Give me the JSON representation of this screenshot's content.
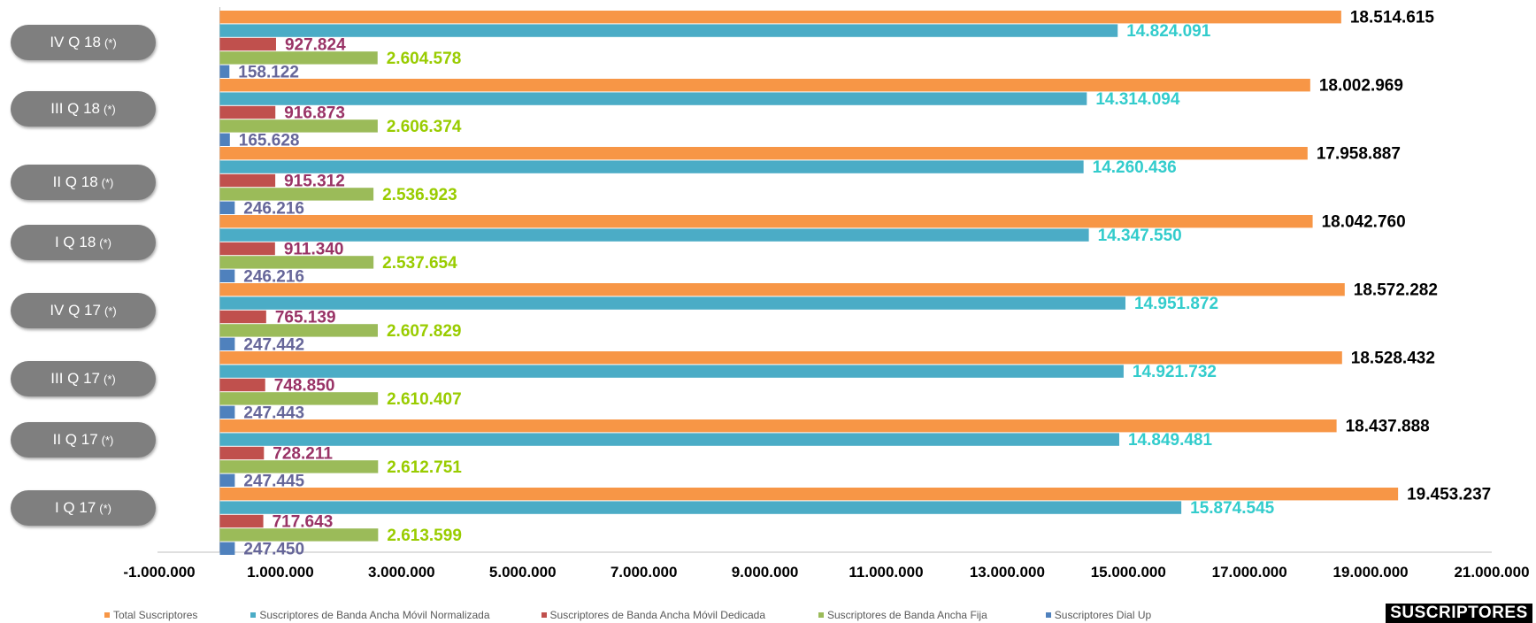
{
  "brand_label": "SUSCRIPTORES",
  "chart_data": {
    "type": "bar",
    "orientation": "horizontal",
    "categories": [
      {
        "label": "IV Q 18",
        "note": "(*)"
      },
      {
        "label": "III Q 18",
        "note": "(*)"
      },
      {
        "label": "II Q 18",
        "note": "(*)"
      },
      {
        "label": "I Q 18",
        "note": "(*)"
      },
      {
        "label": "IV Q 17",
        "note": "(*)"
      },
      {
        "label": "III Q 17",
        "note": "(*)"
      },
      {
        "label": "II Q 17",
        "note": "(*)"
      },
      {
        "label": "I Q 17",
        "note": "(*)"
      }
    ],
    "series": [
      {
        "name": "Total Suscriptores",
        "color": "#F79646",
        "label_color": "#000000",
        "values": [
          18514615,
          18002969,
          17958887,
          18042760,
          18572282,
          18528432,
          18437888,
          19453237
        ],
        "labels": [
          "18.514.615",
          "18.002.969",
          "17.958.887",
          "18.042.760",
          "18.572.282",
          "18.528.432",
          "18.437.888",
          "19.453.237"
        ]
      },
      {
        "name": "Suscriptores de Banda Ancha Móvil Normalizada",
        "color": "#4BACC6",
        "label_color": "#33CCCC",
        "values": [
          14824091,
          14314094,
          14260436,
          14347550,
          14951872,
          14921732,
          14849481,
          15874545
        ],
        "labels": [
          "14.824.091",
          "14.314.094",
          "14.260.436",
          "14.347.550",
          "14.951.872",
          "14.921.732",
          "14.849.481",
          "15.874.545"
        ]
      },
      {
        "name": "Suscriptores de Banda Ancha Móvil Dedicada",
        "color": "#C0504D",
        "label_color": "#993366",
        "values": [
          927824,
          916873,
          915312,
          911340,
          765139,
          748850,
          728211,
          717643
        ],
        "labels": [
          "927.824",
          "916.873",
          "915.312",
          "911.340",
          "765.139",
          "748.850",
          "728.211",
          "717.643"
        ]
      },
      {
        "name": "Suscriptores de Banda Ancha Fija",
        "color": "#9BBB59",
        "label_color": "#99CC00",
        "values": [
          2604578,
          2606374,
          2536923,
          2537654,
          2607829,
          2610407,
          2612751,
          2613599
        ],
        "labels": [
          "2.604.578",
          "2.606.374",
          "2.536.923",
          "2.537.654",
          "2.607.829",
          "2.610.407",
          "2.612.751",
          "2.613.599"
        ]
      },
      {
        "name": "Suscriptores Dial Up",
        "color": "#4F81BD",
        "label_color": "#666699",
        "values": [
          158122,
          165628,
          246216,
          246216,
          247442,
          247443,
          247445,
          247450
        ],
        "labels": [
          "158.122",
          "165.628",
          "246.216",
          "246.216",
          "247.442",
          "247.443",
          "247.445",
          "247.450"
        ]
      }
    ],
    "x_ticks": [
      {
        "value": -1000000,
        "label": "-1.000.000"
      },
      {
        "value": 1000000,
        "label": "1.000.000"
      },
      {
        "value": 3000000,
        "label": "3.000.000"
      },
      {
        "value": 5000000,
        "label": "5.000.000"
      },
      {
        "value": 7000000,
        "label": "7.000.000"
      },
      {
        "value": 9000000,
        "label": "9.000.000"
      },
      {
        "value": 11000000,
        "label": "11.000.000"
      },
      {
        "value": 13000000,
        "label": "13.000.000"
      },
      {
        "value": 15000000,
        "label": "15.000.000"
      },
      {
        "value": 17000000,
        "label": "17.000.000"
      },
      {
        "value": 19000000,
        "label": "19.000.000"
      },
      {
        "value": 21000000,
        "label": "21.000.000"
      }
    ],
    "xlim": [
      -1000000,
      21000000
    ],
    "legend_position": "bottom",
    "grid": false
  }
}
